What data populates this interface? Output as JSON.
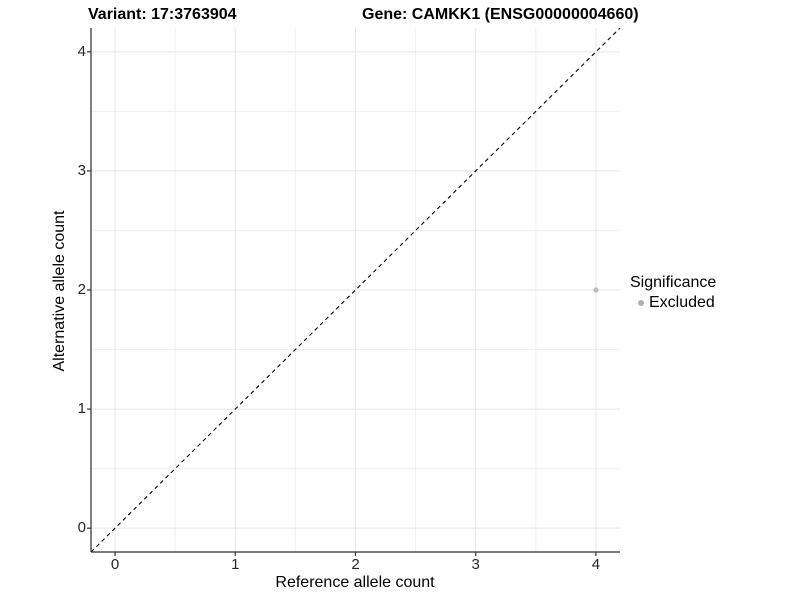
{
  "figure": {
    "title_left": "Variant: 17:3763904",
    "title_right": "Gene: CAMKK1 (ENSG00000004660)"
  },
  "chart_data": {
    "type": "scatter",
    "title_left": "Variant: 17:3763904",
    "title_right": "Gene: CAMKK1 (ENSG00000004660)",
    "xlabel": "Reference allele count",
    "ylabel": "Alternative allele count",
    "xlim": [
      -0.2,
      4.2
    ],
    "ylim": [
      -0.2,
      4.2
    ],
    "x_ticks": [
      0,
      1,
      2,
      3,
      4
    ],
    "y_ticks": [
      0,
      1,
      2,
      3,
      4
    ],
    "minor_ticks": [
      0.5,
      1.5,
      2.5,
      3.5
    ],
    "grid": true,
    "points": [
      {
        "x": 4,
        "y": 2,
        "significance": "Excluded"
      }
    ],
    "identity_line": {
      "style": "dashed",
      "from": [
        -0.2,
        -0.2
      ],
      "to": [
        4.2,
        4.2
      ]
    },
    "legend": {
      "title": "Significance",
      "position": "right",
      "entries": [
        {
          "label": "Excluded",
          "marker": "circle",
          "color": "#b0b0b0"
        }
      ]
    }
  },
  "colors": {
    "grid_major": "#e7e7e7",
    "grid_minor": "#f0f0f0",
    "axis_line": "#2b2b2b",
    "tick_mark": "#333333",
    "point": "#bdbdbd",
    "identity_line": "#000000"
  }
}
